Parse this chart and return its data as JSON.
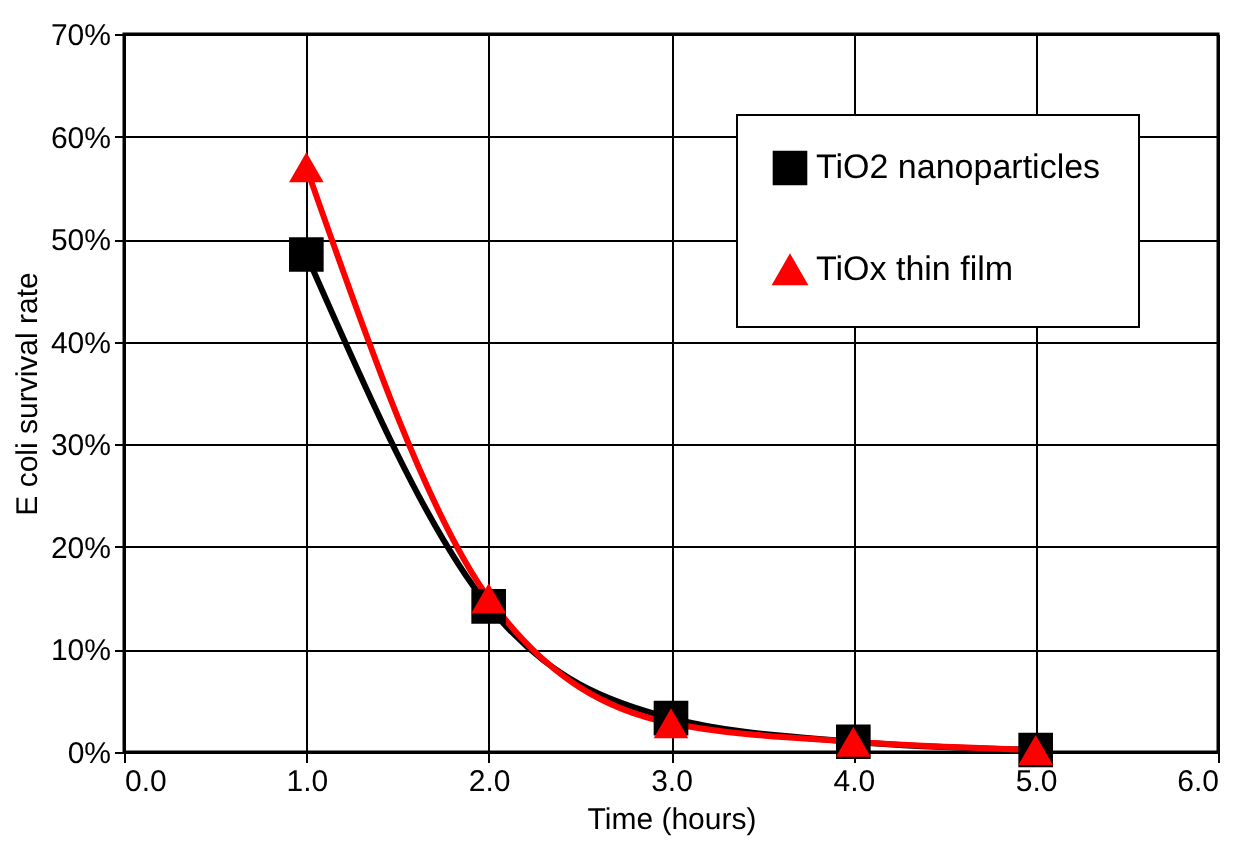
{
  "chart_data": {
    "type": "line",
    "xlabel": "Time (hours)",
    "ylabel": "E coli survival rate",
    "x": [
      1.0,
      2.0,
      3.0,
      4.0,
      5.0
    ],
    "series": [
      {
        "name": "TiO2 nanoparticles",
        "color": "#000000",
        "marker": "square",
        "values": [
          48.5,
          14.2,
          3.3,
          1.0,
          0.2
        ]
      },
      {
        "name": "TiOx thin film",
        "color": "#ff0000",
        "marker": "triangle",
        "values": [
          57.0,
          15.0,
          2.8,
          1.0,
          0.2
        ]
      }
    ],
    "xlim": [
      0,
      6
    ],
    "ylim": [
      0,
      70
    ],
    "xticks": [
      {
        "value": 0,
        "label": "0.0"
      },
      {
        "value": 1,
        "label": "1.0"
      },
      {
        "value": 2,
        "label": "2.0"
      },
      {
        "value": 3,
        "label": "3.0"
      },
      {
        "value": 4,
        "label": "4.0"
      },
      {
        "value": 5,
        "label": "5.0"
      },
      {
        "value": 6,
        "label": "6.0"
      }
    ],
    "yticks": [
      {
        "value": 0,
        "label": "0%"
      },
      {
        "value": 10,
        "label": "10%"
      },
      {
        "value": 20,
        "label": "20%"
      },
      {
        "value": 30,
        "label": "30%"
      },
      {
        "value": 40,
        "label": "40%"
      },
      {
        "value": 50,
        "label": "50%"
      },
      {
        "value": 60,
        "label": "60%"
      },
      {
        "value": 70,
        "label": "70%"
      }
    ],
    "grid": true,
    "legend": "top right",
    "line_style": "solid"
  }
}
